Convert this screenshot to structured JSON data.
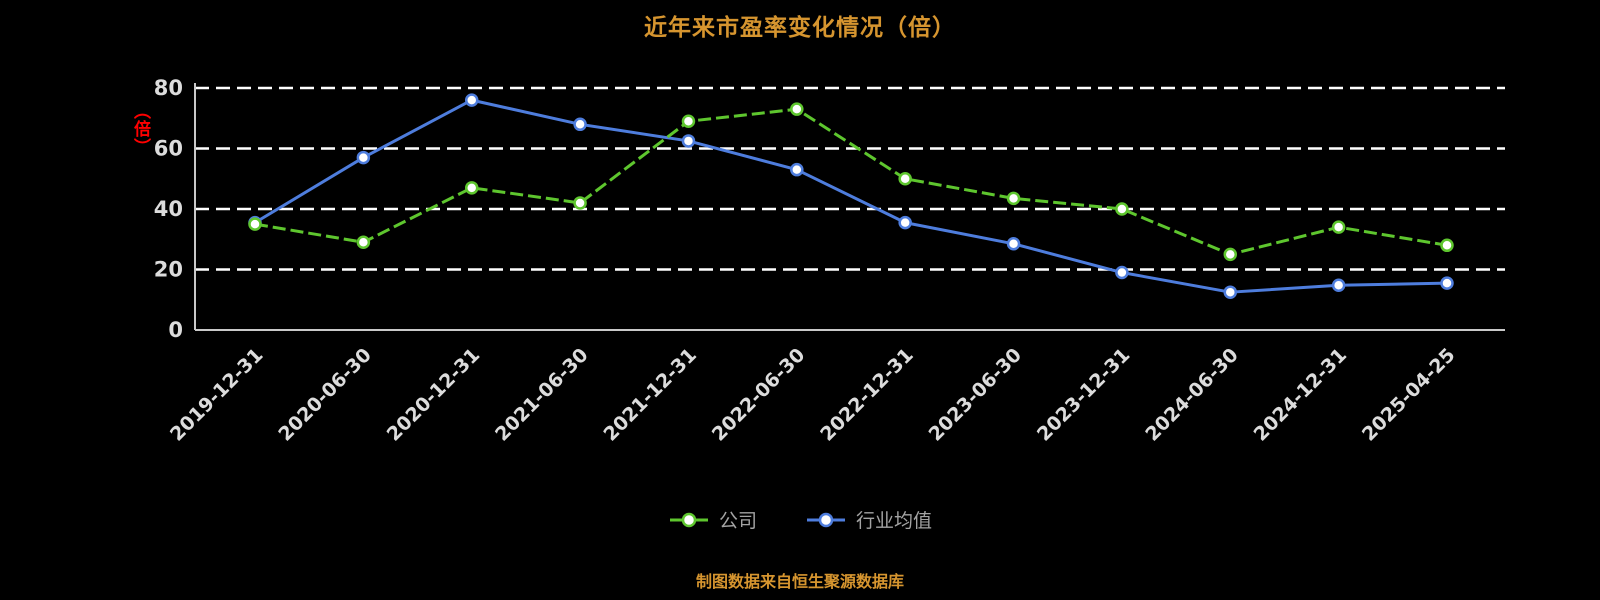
{
  "title": "近年来市盈率变化情况（倍）",
  "y_axis": {
    "unit_label": "（倍）",
    "ticks": [
      0,
      20,
      40,
      60,
      80
    ],
    "max": 80
  },
  "footer": "制图数据来自恒生聚源数据库",
  "colors": {
    "background": "#000000",
    "title": "#d6952f",
    "axis_text": "#dcdcdc",
    "axis_line": "#c9c9c9",
    "gridline": "#ffffff",
    "y_unit_label": "#ff0000",
    "company_series": "#5ec62e",
    "industry_series": "#4e7ddd"
  },
  "legend": {
    "items": [
      {
        "label": "公司",
        "color": "#5ec62e"
      },
      {
        "label": "行业均值",
        "color": "#4e7ddd"
      }
    ]
  },
  "chart_data": {
    "type": "line",
    "title": "近年来市盈率变化情况（倍）",
    "categories": [
      "2019-12-31",
      "2020-06-30",
      "2020-12-31",
      "2021-06-30",
      "2021-12-31",
      "2022-06-30",
      "2022-12-31",
      "2023-06-30",
      "2023-12-31",
      "2024-06-30",
      "2024-12-31",
      "2025-04-25"
    ],
    "series": [
      {
        "name": "公司",
        "color": "#5ec62e",
        "line_style": "dashed",
        "values": [
          35,
          29,
          47,
          42,
          69,
          73,
          50,
          43.5,
          40,
          25,
          34,
          28
        ]
      },
      {
        "name": "行业均值",
        "color": "#4e7ddd",
        "line_style": "solid",
        "values": [
          35.5,
          57,
          76,
          68,
          62.5,
          53,
          35.5,
          28.5,
          19,
          12.5,
          14.8,
          15.5
        ]
      }
    ],
    "xlabel": "",
    "ylabel": "（倍）",
    "ylim": [
      0,
      80
    ],
    "yticks": [
      0,
      20,
      40,
      60,
      80
    ],
    "grid": "dashed-horizontal",
    "legend_position": "bottom"
  }
}
